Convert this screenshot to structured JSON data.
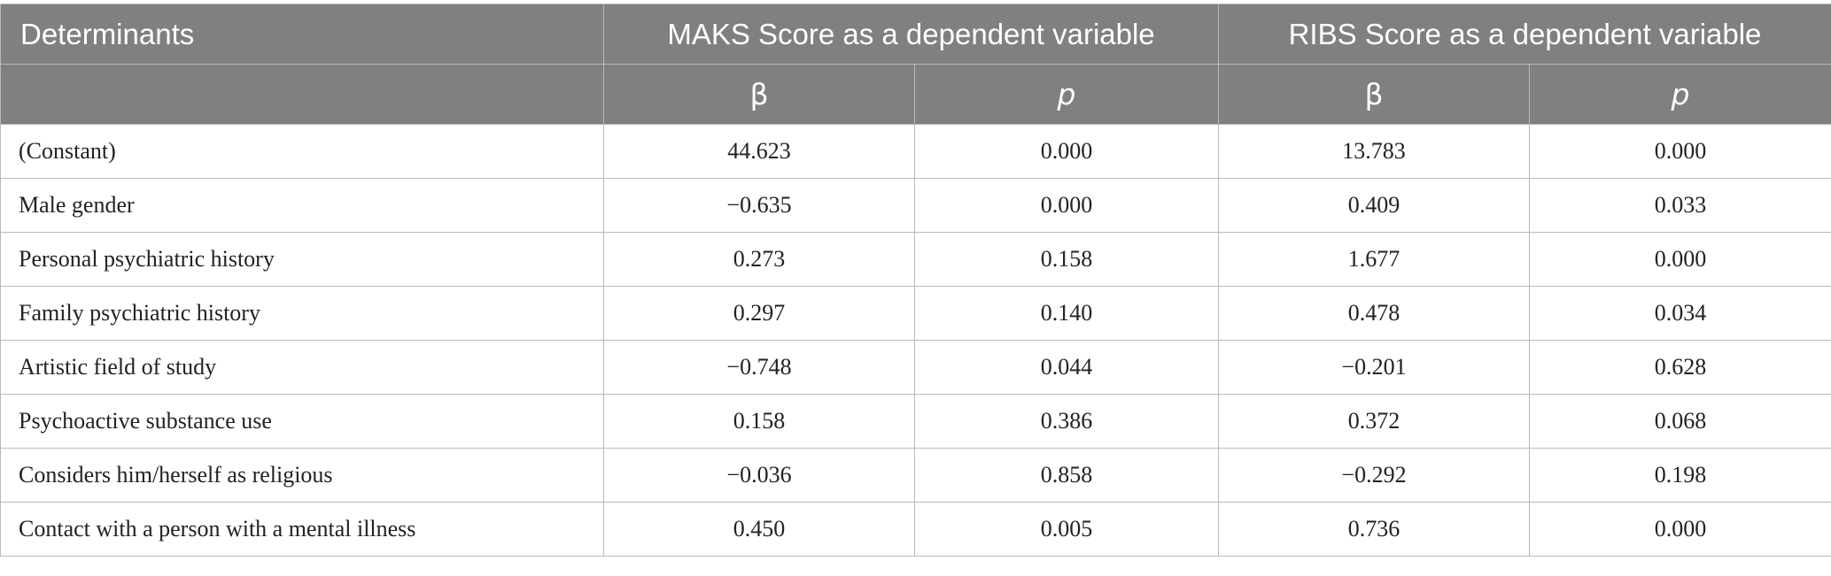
{
  "header": {
    "determinants": "Determinants",
    "maks": "MAKS Score as a dependent variable",
    "ribs": "RIBS Score as a dependent variable",
    "beta": "β",
    "p": "p"
  },
  "rows": [
    {
      "label": "(Constant)",
      "maks_beta": "44.623",
      "maks_p": "0.000",
      "ribs_beta": "13.783",
      "ribs_p": "0.000"
    },
    {
      "label": "Male gender",
      "maks_beta": "−0.635",
      "maks_p": "0.000",
      "ribs_beta": "0.409",
      "ribs_p": "0.033"
    },
    {
      "label": "Personal psychiatric history",
      "maks_beta": "0.273",
      "maks_p": "0.158",
      "ribs_beta": "1.677",
      "ribs_p": "0.000"
    },
    {
      "label": "Family psychiatric history",
      "maks_beta": "0.297",
      "maks_p": "0.140",
      "ribs_beta": "0.478",
      "ribs_p": "0.034"
    },
    {
      "label": "Artistic field of study",
      "maks_beta": "−0.748",
      "maks_p": "0.044",
      "ribs_beta": "−0.201",
      "ribs_p": "0.628"
    },
    {
      "label": "Psychoactive substance use",
      "maks_beta": "0.158",
      "maks_p": "0.386",
      "ribs_beta": "0.372",
      "ribs_p": "0.068"
    },
    {
      "label": "Considers him/herself as religious",
      "maks_beta": "−0.036",
      "maks_p": "0.858",
      "ribs_beta": "−0.292",
      "ribs_p": "0.198"
    },
    {
      "label": "Contact with a person with a mental illness",
      "maks_beta": "0.450",
      "maks_p": "0.005",
      "ribs_beta": "0.736",
      "ribs_p": "0.000"
    }
  ],
  "colors": {
    "header_bg": "#808080",
    "header_text": "#ffffff",
    "border": "#b9b9b9"
  }
}
